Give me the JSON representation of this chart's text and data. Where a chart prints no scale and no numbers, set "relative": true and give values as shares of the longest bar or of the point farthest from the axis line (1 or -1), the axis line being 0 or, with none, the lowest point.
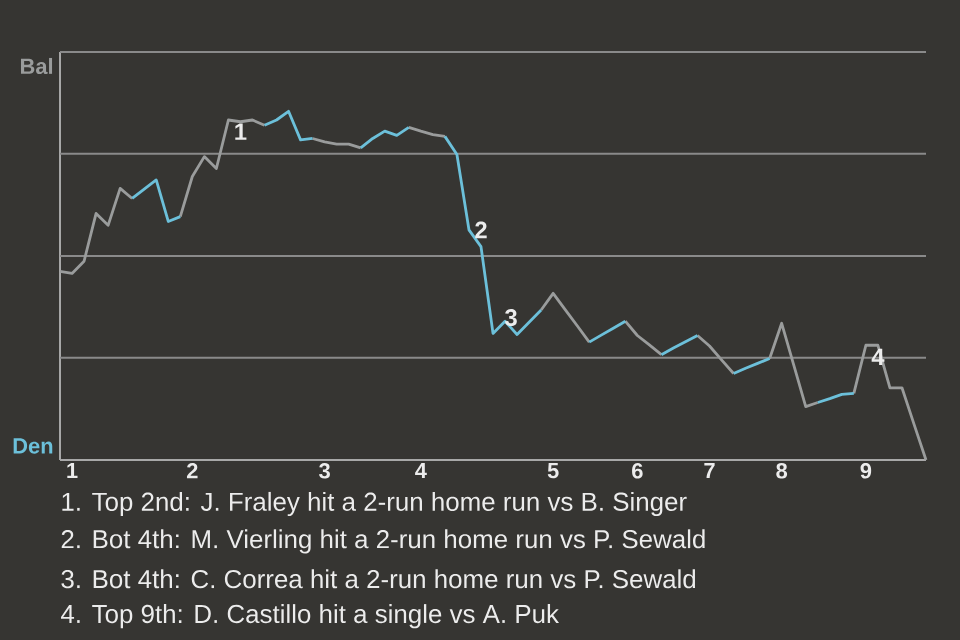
{
  "chart_data": {
    "type": "line",
    "relative": true,
    "categories": [
      null,
      "1",
      null,
      null,
      null,
      null,
      null,
      null,
      null,
      null,
      null,
      "2",
      null,
      null,
      null,
      null,
      null,
      null,
      null,
      null,
      null,
      null,
      "3",
      null,
      null,
      null,
      null,
      null,
      null,
      null,
      "4",
      null,
      null,
      null,
      null,
      null,
      null,
      null,
      null,
      null,
      null,
      "5",
      null,
      null,
      null,
      null,
      null,
      null,
      "6",
      null,
      null,
      null,
      null,
      null,
      "7",
      null,
      null,
      null,
      null,
      null,
      "8",
      null,
      null,
      null,
      null,
      null,
      null,
      "9",
      null,
      null,
      null,
      null,
      null
    ],
    "series": [
      {
        "color": "#9a9c9c",
        "values": [
          0.541,
          0.535,
          0.57,
          0.707,
          0.673,
          0.779,
          0.75,
          null,
          null,
          null,
          0.698,
          0.813,
          0.87,
          0.836,
          0.975,
          0.97,
          0.975,
          0.96,
          null,
          null,
          null,
          0.922,
          0.912,
          0.906,
          0.906,
          0.895,
          null,
          null,
          null,
          0.954,
          0.943,
          0.933,
          0.928,
          null,
          null,
          null,
          null,
          null,
          null,
          null,
          0.43,
          0.478,
          0.431,
          0.385,
          0.338,
          null,
          null,
          0.398,
          0.357,
          0.33,
          0.302,
          null,
          null,
          0.357,
          0.327,
          0.287,
          0.248,
          null,
          null,
          0.291,
          0.392,
          0.273,
          0.153,
          0.165,
          null,
          null,
          0.191,
          0.329,
          0.329,
          0.207,
          0.207,
          0.103,
          0
        ]
      },
      {
        "color": "#6cc0da",
        "values": [
          null,
          null,
          null,
          null,
          null,
          null,
          0.75,
          0.777,
          0.803,
          0.684,
          0.698,
          null,
          null,
          null,
          null,
          null,
          null,
          0.96,
          0.975,
          1,
          0.918,
          0.922,
          null,
          null,
          null,
          0.895,
          0.922,
          0.943,
          0.931,
          0.954,
          null,
          null,
          0.928,
          0.876,
          0.66,
          0.612,
          0.363,
          0.398,
          0.36,
          0.395,
          0.43,
          null,
          null,
          null,
          0.338,
          0.358,
          0.378,
          0.398,
          null,
          null,
          0.302,
          0.321,
          0.339,
          0.357,
          null,
          null,
          0.248,
          0.263,
          0.277,
          0.291,
          null,
          null,
          null,
          0.165,
          0.176,
          0.188,
          0.191,
          null,
          null,
          null,
          null,
          null,
          null
        ]
      }
    ],
    "ref_lines": [
      {
        "axis": "y",
        "value": 0.293,
        "color": "#8a8a8a"
      },
      {
        "axis": "y",
        "value": 0.585,
        "color": "#8a8a8a"
      },
      {
        "axis": "y",
        "value": 0.878,
        "color": "#8a8a8a"
      },
      {
        "axis": "y",
        "value": 1.17,
        "color": "#8a8a8a"
      }
    ],
    "annotations": [
      {
        "text": "1",
        "y": 0.975
      },
      {
        "text": "2",
        "y": 0.66
      },
      {
        "text": "3",
        "y": 0.363
      },
      {
        "text": "4",
        "y": 0.329
      },
      "Bal",
      "Den",
      "1. Top 2nd: J. Fraley hit a 2-run home run vs B. Singer",
      "2. Bot 4th: M. Vierling hit a 2-run home run vs P. Sewald",
      "3. Bot 4th: C. Correa hit a 2-run home run vs P. Sewald",
      "4. Top 9th: D. Castillo hit a single vs A. Puk"
    ]
  }
}
